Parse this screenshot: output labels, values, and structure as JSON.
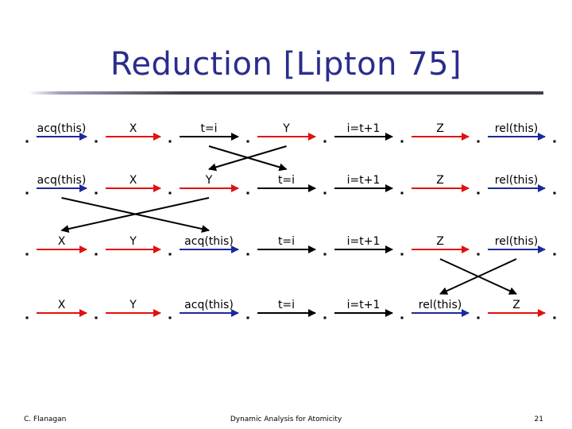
{
  "slide": {
    "title": "Reduction [Lipton 75]",
    "author": "C. Flanagan",
    "footer_title": "Dynamic Analysis for Atomicity",
    "page_number": "21"
  },
  "colors": {
    "title": "#2a2d8c",
    "red_arrow": "#e01010",
    "blue_arrow": "#1a2a9a",
    "crossing_line": "#000000"
  },
  "rows": [
    {
      "steps": [
        {
          "label": "acq(this)",
          "color": "blue"
        },
        {
          "label": "X",
          "color": "red"
        },
        {
          "label": "t=i",
          "color": "black"
        },
        {
          "label": "Y",
          "color": "red"
        },
        {
          "label": "i=t+1",
          "color": "black"
        },
        {
          "label": "Z",
          "color": "red"
        },
        {
          "label": "rel(this)",
          "color": "blue"
        }
      ]
    },
    {
      "steps": [
        {
          "label": "acq(this)",
          "color": "blue"
        },
        {
          "label": "X",
          "color": "red"
        },
        {
          "label": "Y",
          "color": "red"
        },
        {
          "label": "t=i",
          "color": "black"
        },
        {
          "label": "i=t+1",
          "color": "black"
        },
        {
          "label": "Z",
          "color": "red"
        },
        {
          "label": "rel(this)",
          "color": "blue"
        }
      ]
    },
    {
      "steps": [
        {
          "label": "X",
          "color": "red"
        },
        {
          "label": "Y",
          "color": "red"
        },
        {
          "label": "acq(this)",
          "color": "blue"
        },
        {
          "label": "t=i",
          "color": "black"
        },
        {
          "label": "i=t+1",
          "color": "black"
        },
        {
          "label": "Z",
          "color": "red"
        },
        {
          "label": "rel(this)",
          "color": "blue"
        }
      ]
    },
    {
      "steps": [
        {
          "label": "X",
          "color": "red"
        },
        {
          "label": "Y",
          "color": "red"
        },
        {
          "label": "acq(this)",
          "color": "blue"
        },
        {
          "label": "t=i",
          "color": "black"
        },
        {
          "label": "i=t+1",
          "color": "black"
        },
        {
          "label": "rel(this)",
          "color": "blue"
        },
        {
          "label": "Z",
          "color": "red"
        }
      ]
    }
  ],
  "swaps": [
    {
      "between_rows": [
        0,
        1
      ],
      "from_step": 2,
      "to_step": 3
    },
    {
      "between_rows": [
        1,
        2
      ],
      "from_step": 0,
      "to_step": 2
    },
    {
      "between_rows": [
        2,
        3
      ],
      "from_step": 5,
      "to_step": 6
    }
  ]
}
